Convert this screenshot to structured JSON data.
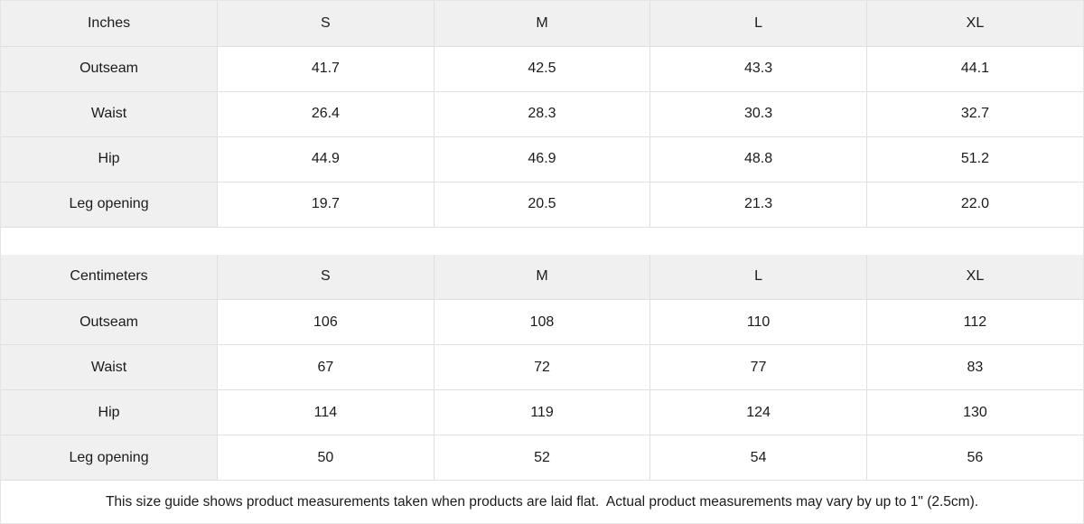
{
  "colors": {
    "header_cell_bg": "#f0f0f0",
    "border": "#e0e0e0",
    "text": "#1b1b1b",
    "background": "#ffffff"
  },
  "tables": [
    {
      "unit_label": "Inches",
      "columns": [
        "S",
        "M",
        "L",
        "XL"
      ],
      "rows": [
        {
          "label": "Outseam",
          "values": [
            "41.7",
            "42.5",
            "43.3",
            "44.1"
          ]
        },
        {
          "label": "Waist",
          "values": [
            "26.4",
            "28.3",
            "30.3",
            "32.7"
          ]
        },
        {
          "label": "Hip",
          "values": [
            "44.9",
            "46.9",
            "48.8",
            "51.2"
          ]
        },
        {
          "label": "Leg opening",
          "values": [
            "19.7",
            "20.5",
            "21.3",
            "22.0"
          ]
        }
      ]
    },
    {
      "unit_label": "Centimeters",
      "columns": [
        "S",
        "M",
        "L",
        "XL"
      ],
      "rows": [
        {
          "label": "Outseam",
          "values": [
            "106",
            "108",
            "110",
            "112"
          ]
        },
        {
          "label": "Waist",
          "values": [
            "67",
            "72",
            "77",
            "83"
          ]
        },
        {
          "label": "Hip",
          "values": [
            "114",
            "119",
            "124",
            "130"
          ]
        },
        {
          "label": "Leg opening",
          "values": [
            "50",
            "52",
            "54",
            "56"
          ]
        }
      ]
    }
  ],
  "footer": {
    "note": "This size guide shows product measurements taken when products are laid flat.  Actual product measurements may vary by up to 1\" (2.5cm)."
  }
}
